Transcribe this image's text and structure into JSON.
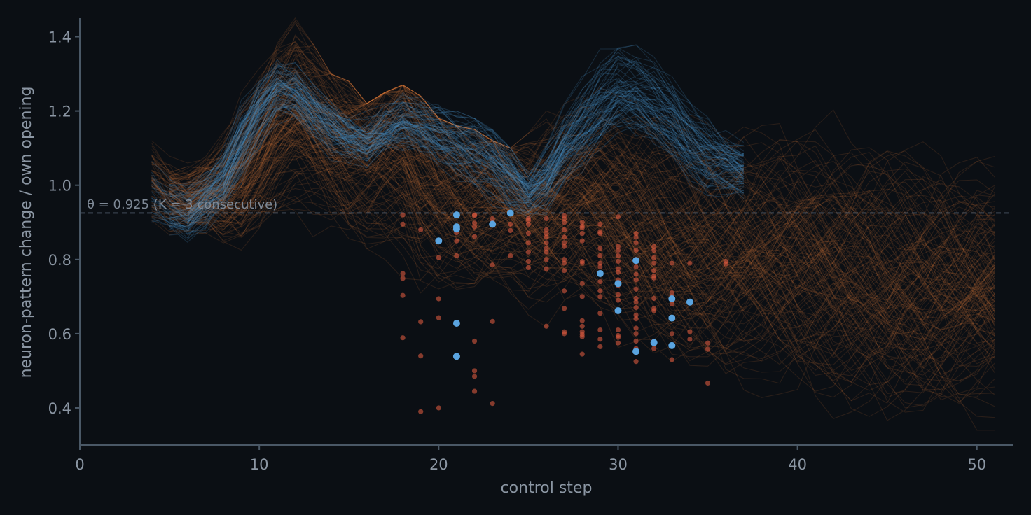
{
  "chart_data": {
    "type": "line",
    "xlabel": "control step",
    "ylabel": "neuron-pattern change / own opening",
    "xlim": [
      0,
      52
    ],
    "ylim": [
      0.3,
      1.45
    ],
    "xticks": [
      0,
      10,
      20,
      30,
      40,
      50
    ],
    "yticks": [
      0.4,
      0.6,
      0.8,
      1.0,
      1.2,
      1.4
    ],
    "grid": false,
    "threshold": {
      "value": 0.925,
      "label": "θ = 0.925  (K = 3 consecutive)",
      "style": "dashed"
    },
    "colors": {
      "background": "#0b0f14",
      "axis": "#4a5866",
      "text": "#8b96a3",
      "orange_traces": "#c4703a",
      "blue_traces": "#4a90c8",
      "orange_points": "#d9593e",
      "blue_points": "#5aa4e0",
      "threshold": "#5f6f80"
    },
    "series": [
      {
        "color": "orange",
        "role": "traces",
        "x": [
          4,
          5,
          6,
          7,
          8,
          9,
          10,
          11,
          12,
          13,
          14,
          15,
          16,
          17,
          18,
          19,
          20,
          21,
          22,
          23,
          24,
          25,
          26,
          27,
          28,
          29,
          30,
          31,
          32,
          33,
          34,
          35,
          36,
          37,
          38,
          39,
          40,
          41,
          42,
          43,
          44,
          45,
          46,
          47,
          48,
          49,
          50,
          51
        ],
        "y_center": [
          1.0,
          0.97,
          0.96,
          0.98,
          0.99,
          1.03,
          1.1,
          1.17,
          1.2,
          1.17,
          1.13,
          1.1,
          1.09,
          1.11,
          1.12,
          1.06,
          1.03,
          1.01,
          0.99,
          0.99,
          0.96,
          0.93,
          0.93,
          0.94,
          0.95,
          0.94,
          0.92,
          0.9,
          0.88,
          0.86,
          0.84,
          0.83,
          0.82,
          0.82,
          0.81,
          0.8,
          0.79,
          0.78,
          0.77,
          0.76,
          0.76,
          0.75,
          0.75,
          0.74,
          0.74,
          0.73,
          0.73,
          0.72
        ],
        "y_upper": [
          1.12,
          1.1,
          1.06,
          1.12,
          1.2,
          1.3,
          1.36,
          1.42,
          1.45,
          1.38,
          1.3,
          1.28,
          1.22,
          1.25,
          1.27,
          1.24,
          1.18,
          1.16,
          1.15,
          1.12,
          1.1,
          1.14,
          1.2,
          1.22,
          1.24,
          1.3,
          1.32,
          1.3,
          1.28,
          1.26,
          1.26,
          1.25,
          1.26,
          1.27,
          1.28,
          1.28,
          1.27,
          1.27,
          1.28,
          1.26,
          1.26,
          1.27,
          1.26,
          1.25,
          1.25,
          1.24,
          1.24,
          1.24
        ],
        "y_lower": [
          0.84,
          0.86,
          0.83,
          0.86,
          0.84,
          0.8,
          0.78,
          0.76,
          0.74,
          0.7,
          0.64,
          0.58,
          0.52,
          0.5,
          0.44,
          0.4,
          0.38,
          0.4,
          0.42,
          0.4,
          0.46,
          0.48,
          0.52,
          0.5,
          0.52,
          0.54,
          0.52,
          0.48,
          0.44,
          0.42,
          0.4,
          0.38,
          0.37,
          0.36,
          0.35,
          0.34,
          0.34,
          0.33,
          0.33,
          0.33,
          0.33,
          0.33,
          0.33,
          0.33,
          0.33,
          0.34,
          0.34,
          0.34
        ]
      },
      {
        "color": "blue",
        "role": "traces",
        "x": [
          4,
          5,
          6,
          7,
          8,
          9,
          10,
          11,
          12,
          13,
          14,
          15,
          16,
          17,
          18,
          19,
          20,
          21,
          22,
          23,
          24,
          25,
          26,
          27,
          28,
          29,
          30,
          31,
          32,
          33,
          34,
          35,
          36,
          37
        ],
        "y_center": [
          0.98,
          0.94,
          0.92,
          0.96,
          1.02,
          1.12,
          1.2,
          1.26,
          1.25,
          1.2,
          1.16,
          1.13,
          1.12,
          1.15,
          1.17,
          1.16,
          1.14,
          1.12,
          1.1,
          1.07,
          1.02,
          0.98,
          1.02,
          1.1,
          1.16,
          1.22,
          1.26,
          1.25,
          1.22,
          1.18,
          1.12,
          1.08,
          1.06,
          1.04
        ],
        "y_upper": [
          1.08,
          1.05,
          1.02,
          1.06,
          1.12,
          1.24,
          1.3,
          1.34,
          1.33,
          1.28,
          1.24,
          1.2,
          1.2,
          1.22,
          1.25,
          1.24,
          1.22,
          1.2,
          1.18,
          1.15,
          1.1,
          1.06,
          1.14,
          1.24,
          1.32,
          1.38,
          1.42,
          1.4,
          1.36,
          1.3,
          1.24,
          1.2,
          1.16,
          1.12
        ],
        "y_lower": [
          0.84,
          0.84,
          0.82,
          0.86,
          0.92,
          1.0,
          1.08,
          1.15,
          1.15,
          1.1,
          1.06,
          1.04,
          1.04,
          1.06,
          1.08,
          1.06,
          1.02,
          0.96,
          0.92,
          0.9,
          0.9,
          0.9,
          0.92,
          0.98,
          1.02,
          1.06,
          1.08,
          1.08,
          1.06,
          1.02,
          0.98,
          0.96,
          0.96,
          0.96
        ]
      }
    ],
    "points_orange": [
      [
        18,
        0.92
      ],
      [
        18,
        0.895
      ],
      [
        18,
        0.762
      ],
      [
        18,
        0.749
      ],
      [
        18,
        0.703
      ],
      [
        18,
        0.589
      ],
      [
        19,
        0.88
      ],
      [
        19,
        0.632
      ],
      [
        19,
        0.54
      ],
      [
        19,
        0.39
      ],
      [
        20,
        0.805
      ],
      [
        20,
        0.694
      ],
      [
        20,
        0.643
      ],
      [
        20,
        0.4
      ],
      [
        21,
        0.92
      ],
      [
        21,
        0.88
      ],
      [
        21,
        0.872
      ],
      [
        21,
        0.85
      ],
      [
        21,
        0.81
      ],
      [
        22,
        0.92
      ],
      [
        22,
        0.918
      ],
      [
        22,
        0.898
      ],
      [
        22,
        0.888
      ],
      [
        22,
        0.862
      ],
      [
        22,
        0.58
      ],
      [
        22,
        0.5
      ],
      [
        22,
        0.485
      ],
      [
        22,
        0.445
      ],
      [
        23,
        0.91
      ],
      [
        23,
        0.9
      ],
      [
        23,
        0.785
      ],
      [
        23,
        0.633
      ],
      [
        23,
        0.412
      ],
      [
        24,
        0.895
      ],
      [
        24,
        0.878
      ],
      [
        24,
        0.81
      ],
      [
        25,
        0.91
      ],
      [
        25,
        0.905
      ],
      [
        25,
        0.895
      ],
      [
        25,
        0.87
      ],
      [
        25,
        0.845
      ],
      [
        25,
        0.82
      ],
      [
        25,
        0.795
      ],
      [
        25,
        0.778
      ],
      [
        26,
        0.91
      ],
      [
        26,
        0.88
      ],
      [
        26,
        0.87
      ],
      [
        26,
        0.86
      ],
      [
        26,
        0.845
      ],
      [
        26,
        0.83
      ],
      [
        26,
        0.82
      ],
      [
        26,
        0.8
      ],
      [
        26,
        0.775
      ],
      [
        26,
        0.62
      ],
      [
        27,
        0.918
      ],
      [
        27,
        0.91
      ],
      [
        27,
        0.9
      ],
      [
        27,
        0.88
      ],
      [
        27,
        0.86
      ],
      [
        27,
        0.845
      ],
      [
        27,
        0.835
      ],
      [
        27,
        0.8
      ],
      [
        27,
        0.79
      ],
      [
        27,
        0.77
      ],
      [
        27,
        0.715
      ],
      [
        27,
        0.668
      ],
      [
        27,
        0.605
      ],
      [
        27,
        0.6
      ],
      [
        28,
        0.9
      ],
      [
        28,
        0.89
      ],
      [
        28,
        0.885
      ],
      [
        28,
        0.87
      ],
      [
        28,
        0.85
      ],
      [
        28,
        0.795
      ],
      [
        28,
        0.79
      ],
      [
        28,
        0.735
      ],
      [
        28,
        0.7
      ],
      [
        28,
        0.635
      ],
      [
        28,
        0.62
      ],
      [
        28,
        0.605
      ],
      [
        28,
        0.598
      ],
      [
        28,
        0.592
      ],
      [
        28,
        0.545
      ],
      [
        29,
        0.895
      ],
      [
        29,
        0.875
      ],
      [
        29,
        0.87
      ],
      [
        29,
        0.83
      ],
      [
        29,
        0.81
      ],
      [
        29,
        0.79
      ],
      [
        29,
        0.78
      ],
      [
        29,
        0.76
      ],
      [
        29,
        0.74
      ],
      [
        29,
        0.715
      ],
      [
        29,
        0.7
      ],
      [
        29,
        0.655
      ],
      [
        29,
        0.61
      ],
      [
        29,
        0.585
      ],
      [
        29,
        0.565
      ],
      [
        30,
        0.915
      ],
      [
        30,
        0.835
      ],
      [
        30,
        0.825
      ],
      [
        30,
        0.81
      ],
      [
        30,
        0.795
      ],
      [
        30,
        0.775
      ],
      [
        30,
        0.765
      ],
      [
        30,
        0.745
      ],
      [
        30,
        0.73
      ],
      [
        30,
        0.705
      ],
      [
        30,
        0.69
      ],
      [
        30,
        0.61
      ],
      [
        30,
        0.595
      ],
      [
        30,
        0.59
      ],
      [
        30,
        0.575
      ],
      [
        31,
        0.87
      ],
      [
        31,
        0.86
      ],
      [
        31,
        0.845
      ],
      [
        31,
        0.825
      ],
      [
        31,
        0.8
      ],
      [
        31,
        0.78
      ],
      [
        31,
        0.76
      ],
      [
        31,
        0.745
      ],
      [
        31,
        0.72
      ],
      [
        31,
        0.695
      ],
      [
        31,
        0.685
      ],
      [
        31,
        0.67
      ],
      [
        31,
        0.65
      ],
      [
        31,
        0.64
      ],
      [
        31,
        0.615
      ],
      [
        31,
        0.6
      ],
      [
        31,
        0.58
      ],
      [
        31,
        0.56
      ],
      [
        31,
        0.525
      ],
      [
        32,
        0.835
      ],
      [
        32,
        0.825
      ],
      [
        32,
        0.805
      ],
      [
        32,
        0.79
      ],
      [
        32,
        0.77
      ],
      [
        32,
        0.755
      ],
      [
        32,
        0.75
      ],
      [
        32,
        0.695
      ],
      [
        32,
        0.668
      ],
      [
        32,
        0.662
      ],
      [
        32,
        0.58
      ],
      [
        32,
        0.56
      ],
      [
        33,
        0.79
      ],
      [
        33,
        0.71
      ],
      [
        33,
        0.7
      ],
      [
        33,
        0.68
      ],
      [
        33,
        0.6
      ],
      [
        33,
        0.53
      ],
      [
        34,
        0.79
      ],
      [
        34,
        0.605
      ],
      [
        34,
        0.585
      ],
      [
        35,
        0.575
      ],
      [
        35,
        0.558
      ],
      [
        35,
        0.467
      ],
      [
        36,
        0.795
      ],
      [
        36,
        0.788
      ]
    ],
    "points_blue": [
      [
        20,
        0.85
      ],
      [
        21,
        0.92
      ],
      [
        21,
        0.888
      ],
      [
        21,
        0.882
      ],
      [
        21,
        0.628
      ],
      [
        21,
        0.539
      ],
      [
        23,
        0.895
      ],
      [
        24,
        0.925
      ],
      [
        29,
        0.762
      ],
      [
        30,
        0.735
      ],
      [
        30,
        0.662
      ],
      [
        31,
        0.797
      ],
      [
        31,
        0.552
      ],
      [
        32,
        0.576
      ],
      [
        33,
        0.694
      ],
      [
        33,
        0.642
      ],
      [
        33,
        0.568
      ],
      [
        34,
        0.685
      ]
    ]
  }
}
